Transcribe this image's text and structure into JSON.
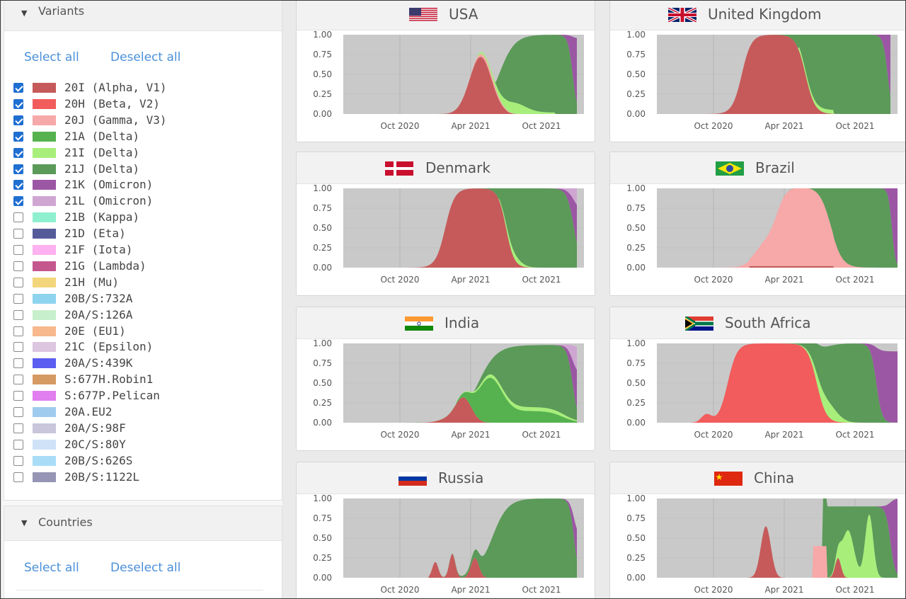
{
  "variants_panel": {
    "title": "Variants",
    "select_all": "Select all",
    "deselect_all": "Deselect all"
  },
  "countries_panel": {
    "title": "Countries",
    "select_all": "Select all",
    "deselect_all": "Deselect all"
  },
  "variants": [
    {
      "label": "20I (Alpha, V1)",
      "color": "#c65a5a",
      "checked": true
    },
    {
      "label": "20H (Beta, V2)",
      "color": "#f25c5c",
      "checked": true
    },
    {
      "label": "20J (Gamma, V3)",
      "color": "#f7a8a8",
      "checked": true
    },
    {
      "label": "21A (Delta)",
      "color": "#55b24f",
      "checked": true
    },
    {
      "label": "21I (Delta)",
      "color": "#a7ef7a",
      "checked": true
    },
    {
      "label": "21J (Delta)",
      "color": "#5b9a59",
      "checked": true
    },
    {
      "label": "21K (Omicron)",
      "color": "#9b57a3",
      "checked": true
    },
    {
      "label": "21L (Omicron)",
      "color": "#cfa6d2",
      "checked": true
    },
    {
      "label": "21B (Kappa)",
      "color": "#8ef0cf",
      "checked": false
    },
    {
      "label": "21D (Eta)",
      "color": "#555b99",
      "checked": false
    },
    {
      "label": "21F (Iota)",
      "color": "#ffb0f0",
      "checked": false
    },
    {
      "label": "21G (Lambda)",
      "color": "#c5578f",
      "checked": false
    },
    {
      "label": "21H (Mu)",
      "color": "#f3d67c",
      "checked": false
    },
    {
      "label": "20B/S:732A",
      "color": "#8fd4ef",
      "checked": false
    },
    {
      "label": "20A/S:126A",
      "color": "#c8efcc",
      "checked": false
    },
    {
      "label": "20E (EU1)",
      "color": "#f7b88c",
      "checked": false
    },
    {
      "label": "21C (Epsilon)",
      "color": "#dcc6e0",
      "checked": false
    },
    {
      "label": "20A/S:439K",
      "color": "#5b5ef0",
      "checked": false
    },
    {
      "label": "S:677H.Robin1",
      "color": "#d59a63",
      "checked": false
    },
    {
      "label": "S:677P.Pelican",
      "color": "#e17ef0",
      "checked": false
    },
    {
      "label": "20A.EU2",
      "color": "#9fcbee",
      "checked": false
    },
    {
      "label": "20A/S:98F",
      "color": "#c9c6db",
      "checked": false
    },
    {
      "label": "20C/S:80Y",
      "color": "#cfe2f7",
      "checked": false
    },
    {
      "label": "20B/S:626S",
      "color": "#a9ddf7",
      "checked": false
    },
    {
      "label": "20B/S:1122L",
      "color": "#9795b5",
      "checked": false
    }
  ],
  "axis": {
    "y_ticks": [
      "0.00",
      "0.25",
      "0.50",
      "0.75",
      "1.00"
    ],
    "x_ticks": [
      "Oct 2020",
      "Apr 2021",
      "Oct 2021"
    ]
  },
  "countries": [
    {
      "name": "USA",
      "flag": "usa-flag-icon"
    },
    {
      "name": "United Kingdom",
      "flag": "uk-flag-icon"
    },
    {
      "name": "Denmark",
      "flag": "denmark-flag-icon"
    },
    {
      "name": "Brazil",
      "flag": "brazil-flag-icon"
    },
    {
      "name": "India",
      "flag": "india-flag-icon"
    },
    {
      "name": "South Africa",
      "flag": "south-africa-flag-icon"
    },
    {
      "name": "Russia",
      "flag": "russia-flag-icon"
    },
    {
      "name": "China",
      "flag": "china-flag-icon"
    }
  ]
}
